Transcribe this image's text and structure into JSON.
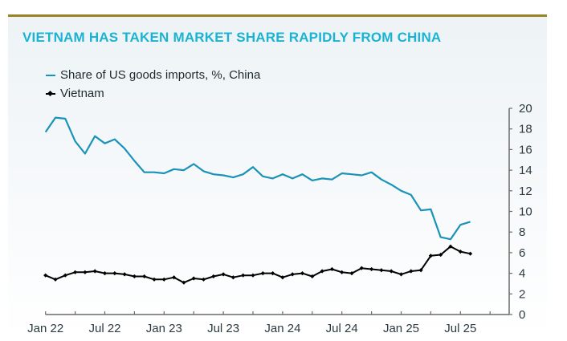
{
  "chart_data": {
    "type": "line",
    "title": "VIETNAM HAS TAKEN MARKET SHARE RAPIDLY FROM CHINA",
    "xlabel": "",
    "ylabel": "",
    "legend_position": "top-left",
    "grid": false,
    "ylim": [
      0,
      20
    ],
    "yticks": [
      0,
      2,
      4,
      6,
      8,
      10,
      12,
      14,
      16,
      18,
      20
    ],
    "y_axis_side": "right",
    "xlim_months": [
      0,
      47
    ],
    "x_tick_labels": [
      {
        "label": "Jan 22",
        "month_index": 0
      },
      {
        "label": "Jul 22",
        "month_index": 6
      },
      {
        "label": "Jan 23",
        "month_index": 12
      },
      {
        "label": "Jul 23",
        "month_index": 18
      },
      {
        "label": "Jan 24",
        "month_index": 24
      },
      {
        "label": "Jul 24",
        "month_index": 30
      },
      {
        "label": "Jan 25",
        "month_index": 36
      },
      {
        "label": "Jul 25",
        "month_index": 42
      }
    ],
    "x_minor_tick_every_months": 3,
    "x_start": "Jan 2022",
    "x_frequency": "monthly",
    "series": [
      {
        "name": "Share of US goods imports, %, China",
        "color": "#1a93b8",
        "marker": "none",
        "values": [
          17.7,
          19.1,
          19.0,
          16.8,
          15.6,
          17.3,
          16.6,
          17.0,
          16.1,
          14.9,
          13.8,
          13.8,
          13.7,
          14.1,
          14.0,
          14.6,
          13.9,
          13.6,
          13.5,
          13.3,
          13.6,
          14.3,
          13.4,
          13.2,
          13.6,
          13.2,
          13.6,
          13.0,
          13.2,
          13.1,
          13.7,
          13.6,
          13.5,
          13.8,
          13.1,
          12.6,
          12.0,
          11.6,
          10.1,
          10.2,
          7.5,
          7.3,
          8.7,
          9.0
        ]
      },
      {
        "name": "Vietnam",
        "color": "#000000",
        "marker": "diamond",
        "values": [
          3.8,
          3.4,
          3.8,
          4.1,
          4.1,
          4.2,
          4.0,
          4.0,
          3.9,
          3.7,
          3.7,
          3.4,
          3.4,
          3.6,
          3.1,
          3.5,
          3.4,
          3.7,
          3.9,
          3.6,
          3.8,
          3.8,
          4.0,
          4.0,
          3.6,
          3.9,
          4.0,
          3.7,
          4.2,
          4.4,
          4.1,
          4.0,
          4.5,
          4.4,
          4.3,
          4.2,
          3.9,
          4.2,
          4.3,
          5.7,
          5.8,
          6.6,
          6.1,
          5.9
        ]
      }
    ]
  },
  "colors": {
    "title": "#1ab3d3",
    "top_rule": "#9a8428",
    "axis": "#6b6b6b",
    "text": "#2b3a40"
  }
}
